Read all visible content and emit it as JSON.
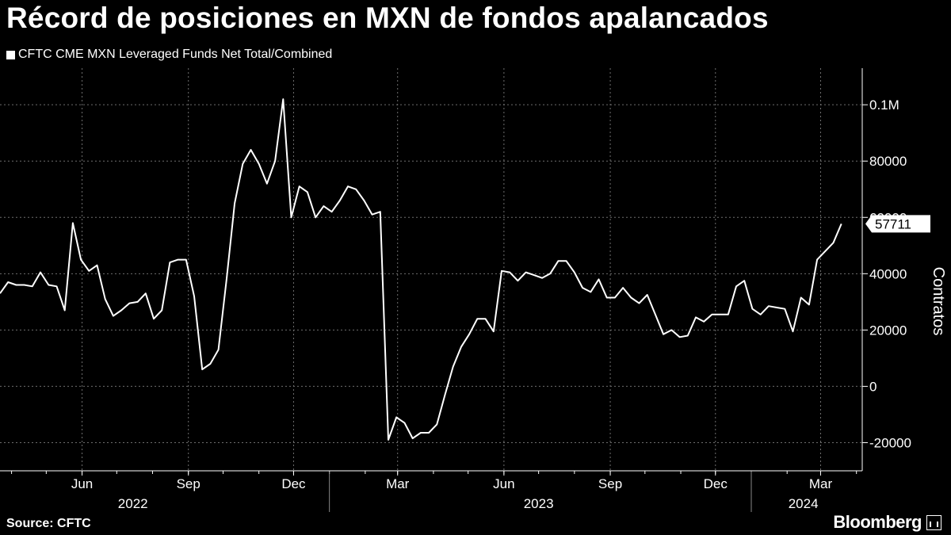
{
  "title": "Récord de posiciones en MXN de fondos apalancados",
  "source": "Source: CFTC",
  "brand": "Bloomberg",
  "colors": {
    "background": "#000000",
    "line": "#ffffff",
    "grid": "#6e6e6e"
  },
  "chart_data": {
    "type": "line",
    "legend": "CFTC CME MXN Leveraged Funds Net Total/Combined",
    "ylabel": "Contratos",
    "ylim": [
      -30000,
      113000
    ],
    "y_ticks": [
      {
        "value": 100000,
        "label": "0.1M"
      },
      {
        "value": 80000,
        "label": "80000"
      },
      {
        "value": 60000,
        "label": "60000"
      },
      {
        "value": 40000,
        "label": "40000"
      },
      {
        "value": 20000,
        "label": "20000"
      },
      {
        "value": 0,
        "label": "0"
      },
      {
        "value": -20000,
        "label": "-20000"
      }
    ],
    "x_month_ticks": [
      {
        "date": "2022-06-01",
        "label": "Jun"
      },
      {
        "date": "2022-09-01",
        "label": "Sep"
      },
      {
        "date": "2022-12-01",
        "label": "Dec"
      },
      {
        "date": "2023-03-01",
        "label": "Mar"
      },
      {
        "date": "2023-06-01",
        "label": "Jun"
      },
      {
        "date": "2023-09-01",
        "label": "Sep"
      },
      {
        "date": "2023-12-01",
        "label": "Dec"
      },
      {
        "date": "2024-03-01",
        "label": "Mar"
      }
    ],
    "x_year_labels": [
      {
        "date": "2022-07-15",
        "label": "2022"
      },
      {
        "date": "2023-07-01",
        "label": "2023"
      },
      {
        "date": "2024-02-15",
        "label": "2024"
      }
    ],
    "x_year_dividers": [
      "2023-01-01",
      "2024-01-01"
    ],
    "last_value_label": "57711",
    "series": [
      {
        "values": [
          [
            "2022-03-22",
            33000
          ],
          [
            "2022-03-29",
            37000
          ],
          [
            "2022-04-05",
            36000
          ],
          [
            "2022-04-12",
            36000
          ],
          [
            "2022-04-19",
            35500
          ],
          [
            "2022-04-26",
            40500
          ],
          [
            "2022-05-03",
            36000
          ],
          [
            "2022-05-10",
            35500
          ],
          [
            "2022-05-17",
            27000
          ],
          [
            "2022-05-24",
            58000
          ],
          [
            "2022-05-31",
            45000
          ],
          [
            "2022-06-07",
            41000
          ],
          [
            "2022-06-14",
            43000
          ],
          [
            "2022-06-21",
            31000
          ],
          [
            "2022-06-28",
            25000
          ],
          [
            "2022-07-05",
            27000
          ],
          [
            "2022-07-12",
            29500
          ],
          [
            "2022-07-19",
            30000
          ],
          [
            "2022-07-26",
            33000
          ],
          [
            "2022-08-02",
            24000
          ],
          [
            "2022-08-09",
            27000
          ],
          [
            "2022-08-16",
            44000
          ],
          [
            "2022-08-23",
            45000
          ],
          [
            "2022-08-30",
            45000
          ],
          [
            "2022-09-06",
            32000
          ],
          [
            "2022-09-13",
            6000
          ],
          [
            "2022-09-20",
            8000
          ],
          [
            "2022-09-27",
            13000
          ],
          [
            "2022-10-04",
            38000
          ],
          [
            "2022-10-11",
            65000
          ],
          [
            "2022-10-18",
            79000
          ],
          [
            "2022-10-25",
            84000
          ],
          [
            "2022-11-01",
            79000
          ],
          [
            "2022-11-08",
            72000
          ],
          [
            "2022-11-15",
            80000
          ],
          [
            "2022-11-22",
            102000
          ],
          [
            "2022-11-29",
            60000
          ],
          [
            "2022-12-06",
            71000
          ],
          [
            "2022-12-13",
            69000
          ],
          [
            "2022-12-20",
            60000
          ],
          [
            "2022-12-27",
            64000
          ],
          [
            "2023-01-03",
            62000
          ],
          [
            "2023-01-10",
            66000
          ],
          [
            "2023-01-17",
            71000
          ],
          [
            "2023-01-24",
            70000
          ],
          [
            "2023-01-31",
            66000
          ],
          [
            "2023-02-07",
            61000
          ],
          [
            "2023-02-14",
            62000
          ],
          [
            "2023-02-21",
            -19000
          ],
          [
            "2023-02-28",
            -11000
          ],
          [
            "2023-03-07",
            -13000
          ],
          [
            "2023-03-14",
            -18500
          ],
          [
            "2023-03-21",
            -16500
          ],
          [
            "2023-03-28",
            -16500
          ],
          [
            "2023-04-04",
            -13500
          ],
          [
            "2023-04-11",
            -3000
          ],
          [
            "2023-04-18",
            7000
          ],
          [
            "2023-04-25",
            14000
          ],
          [
            "2023-05-02",
            18500
          ],
          [
            "2023-05-09",
            24000
          ],
          [
            "2023-05-16",
            24000
          ],
          [
            "2023-05-23",
            19500
          ],
          [
            "2023-05-30",
            41000
          ],
          [
            "2023-06-06",
            40500
          ],
          [
            "2023-06-13",
            37500
          ],
          [
            "2023-06-20",
            40500
          ],
          [
            "2023-06-27",
            39500
          ],
          [
            "2023-07-04",
            38500
          ],
          [
            "2023-07-11",
            40000
          ],
          [
            "2023-07-18",
            44500
          ],
          [
            "2023-07-25",
            44500
          ],
          [
            "2023-08-01",
            40500
          ],
          [
            "2023-08-08",
            35000
          ],
          [
            "2023-08-15",
            33500
          ],
          [
            "2023-08-22",
            38000
          ],
          [
            "2023-08-29",
            31500
          ],
          [
            "2023-09-05",
            31500
          ],
          [
            "2023-09-12",
            35000
          ],
          [
            "2023-09-19",
            31500
          ],
          [
            "2023-09-26",
            29500
          ],
          [
            "2023-10-03",
            32500
          ],
          [
            "2023-10-10",
            25500
          ],
          [
            "2023-10-17",
            18500
          ],
          [
            "2023-10-24",
            20000
          ],
          [
            "2023-10-31",
            17500
          ],
          [
            "2023-11-07",
            18000
          ],
          [
            "2023-11-14",
            24500
          ],
          [
            "2023-11-21",
            23000
          ],
          [
            "2023-11-28",
            25500
          ],
          [
            "2023-12-05",
            25500
          ],
          [
            "2023-12-12",
            25500
          ],
          [
            "2023-12-19",
            35500
          ],
          [
            "2023-12-26",
            37500
          ],
          [
            "2024-01-02",
            27500
          ],
          [
            "2024-01-09",
            25500
          ],
          [
            "2024-01-16",
            28500
          ],
          [
            "2024-01-23",
            28000
          ],
          [
            "2024-01-30",
            27500
          ],
          [
            "2024-02-06",
            19500
          ],
          [
            "2024-02-13",
            31500
          ],
          [
            "2024-02-20",
            29000
          ],
          [
            "2024-02-27",
            45000
          ],
          [
            "2024-03-05",
            48000
          ],
          [
            "2024-03-12",
            51000
          ],
          [
            "2024-03-19",
            57711
          ]
        ]
      }
    ]
  }
}
